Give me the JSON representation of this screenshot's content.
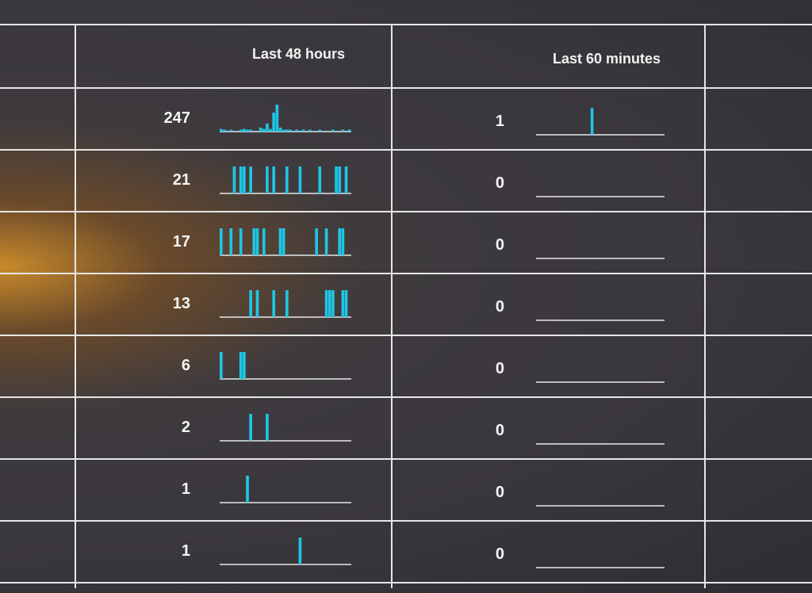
{
  "columns": {
    "last_48_hours": "Last 48 hours",
    "last_60_minutes": "Last 60 minutes"
  },
  "colors": {
    "grid": "#e6e6e6",
    "spark_bar": "#1ec6e6",
    "spark_base": "#e8e8e8",
    "text": "#f4f4f4"
  },
  "rows": [
    {
      "count_48h": "247",
      "count_60m": "1",
      "spark48": [
        2,
        1,
        0,
        1,
        0,
        0,
        1,
        2,
        1,
        1,
        0,
        0,
        3,
        2,
        6,
        2,
        14,
        20,
        3,
        1,
        1,
        1,
        0,
        1,
        0,
        1,
        0,
        1,
        0,
        0,
        1,
        0,
        0,
        0,
        1,
        0,
        0,
        1,
        0,
        1
      ],
      "spark60": [
        0,
        0,
        0,
        0,
        0,
        0,
        0,
        0,
        0,
        0,
        0,
        0,
        0,
        0,
        0,
        0,
        0,
        1,
        0,
        0,
        0,
        0,
        0,
        0,
        0,
        0,
        0,
        0,
        0,
        0,
        0,
        0,
        0,
        0,
        0,
        0,
        0,
        0,
        0,
        0
      ]
    },
    {
      "count_48h": "21",
      "count_60m": "0",
      "spark48": [
        0,
        0,
        0,
        0,
        1,
        0,
        1,
        1,
        0,
        1,
        0,
        0,
        0,
        0,
        1,
        0,
        1,
        0,
        0,
        0,
        1,
        0,
        0,
        0,
        1,
        0,
        0,
        0,
        0,
        0,
        1,
        0,
        0,
        0,
        0,
        1,
        1,
        0,
        1,
        0
      ],
      "spark60": [
        0
      ]
    },
    {
      "count_48h": "17",
      "count_60m": "0",
      "spark48": [
        1,
        0,
        0,
        1,
        0,
        0,
        1,
        0,
        0,
        0,
        1,
        1,
        0,
        1,
        0,
        0,
        0,
        0,
        1,
        1,
        0,
        0,
        0,
        0,
        0,
        0,
        0,
        0,
        0,
        1,
        0,
        0,
        1,
        0,
        0,
        0,
        1,
        1,
        0,
        0
      ],
      "spark60": [
        0
      ]
    },
    {
      "count_48h": "13",
      "count_60m": "0",
      "spark48": [
        0,
        0,
        0,
        0,
        0,
        0,
        0,
        0,
        0,
        1,
        0,
        1,
        0,
        0,
        0,
        0,
        1,
        0,
        0,
        0,
        1,
        0,
        0,
        0,
        0,
        0,
        0,
        0,
        0,
        0,
        0,
        0,
        1,
        1,
        1,
        0,
        0,
        1,
        1,
        0
      ],
      "spark60": [
        0
      ]
    },
    {
      "count_48h": "6",
      "count_60m": "0",
      "spark48": [
        1,
        0,
        0,
        0,
        0,
        0,
        1,
        1,
        0,
        0,
        0,
        0,
        0,
        0,
        0,
        0,
        0,
        0,
        0,
        0,
        0,
        0,
        0,
        0,
        0,
        0,
        0,
        0,
        0,
        0,
        0,
        0,
        0,
        0,
        0,
        0,
        0,
        0,
        0,
        0
      ],
      "spark60": [
        0
      ]
    },
    {
      "count_48h": "2",
      "count_60m": "0",
      "spark48": [
        0,
        0,
        0,
        0,
        0,
        0,
        0,
        0,
        0,
        1,
        0,
        0,
        0,
        0,
        1,
        0,
        0,
        0,
        0,
        0,
        0,
        0,
        0,
        0,
        0,
        0,
        0,
        0,
        0,
        0,
        0,
        0,
        0,
        0,
        0,
        0,
        0,
        0,
        0,
        0
      ],
      "spark60": [
        0
      ]
    },
    {
      "count_48h": "1",
      "count_60m": "0",
      "spark48": [
        0,
        0,
        0,
        0,
        0,
        0,
        0,
        0,
        1,
        0,
        0,
        0,
        0,
        0,
        0,
        0,
        0,
        0,
        0,
        0,
        0,
        0,
        0,
        0,
        0,
        0,
        0,
        0,
        0,
        0,
        0,
        0,
        0,
        0,
        0,
        0,
        0,
        0,
        0,
        0
      ],
      "spark60": [
        0
      ]
    },
    {
      "count_48h": "1",
      "count_60m": "0",
      "spark48": [
        0,
        0,
        0,
        0,
        0,
        0,
        0,
        0,
        0,
        0,
        0,
        0,
        0,
        0,
        0,
        0,
        0,
        0,
        0,
        0,
        0,
        0,
        0,
        0,
        1,
        0,
        0,
        0,
        0,
        0,
        0,
        0,
        0,
        0,
        0,
        0,
        0,
        0,
        0,
        0
      ],
      "spark60": [
        0
      ]
    }
  ]
}
